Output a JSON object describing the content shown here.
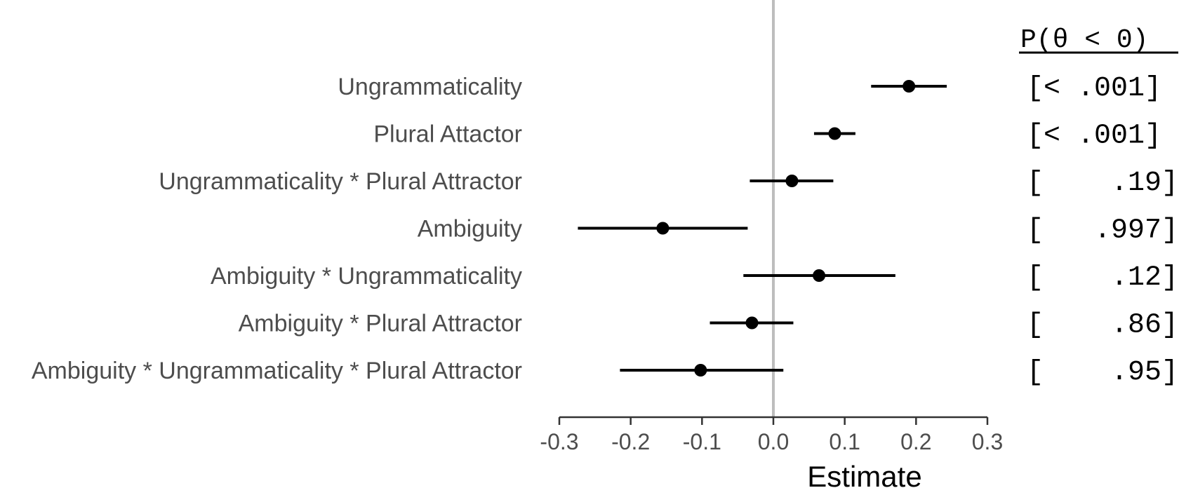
{
  "chart_data": {
    "type": "forest",
    "xlabel": "Estimate",
    "xlim": [
      -0.3,
      0.3
    ],
    "x_ticks": [
      "-0.3",
      "-0.2",
      "-0.1",
      "0.0",
      "0.1",
      "0.2",
      "0.3"
    ],
    "reference_line": 0,
    "reference_line_color": "#bdbdbd",
    "point_color": "#000000",
    "label_color": "#4d4d4d",
    "prob_header": "P(θ < 0)",
    "terms": [
      {
        "label": "Ungrammaticality",
        "estimate": 0.19,
        "lower": 0.137,
        "upper": 0.243,
        "prob": "[< .001]"
      },
      {
        "label": "Plural Attactor",
        "estimate": 0.086,
        "lower": 0.057,
        "upper": 0.115,
        "prob": "[< .001]"
      },
      {
        "label": "Ungrammaticality * Plural Attractor",
        "estimate": 0.026,
        "lower": -0.033,
        "upper": 0.084,
        "prob": "[    .19]"
      },
      {
        "label": "Ambiguity",
        "estimate": -0.155,
        "lower": -0.274,
        "upper": -0.036,
        "prob": "[   .997]"
      },
      {
        "label": "Ambiguity * Ungrammaticality",
        "estimate": 0.064,
        "lower": -0.042,
        "upper": 0.171,
        "prob": "[    .12]"
      },
      {
        "label": "Ambiguity * Plural Attractor",
        "estimate": -0.03,
        "lower": -0.089,
        "upper": 0.028,
        "prob": "[    .86]"
      },
      {
        "label": "Ambiguity * Ungrammaticality * Plural Attractor",
        "estimate": -0.102,
        "lower": -0.215,
        "upper": 0.014,
        "prob": "[    .95]"
      }
    ]
  }
}
